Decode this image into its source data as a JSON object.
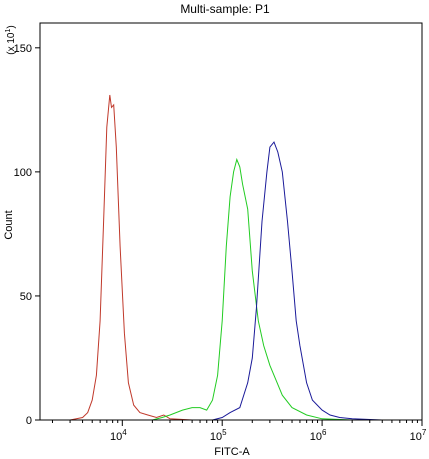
{
  "chart_data": {
    "type": "line",
    "title": "Multi-sample: P1",
    "xlabel": "FITC-A",
    "ylabel": "Count",
    "y_multiplier": "(x 10",
    "y_multiplier_exp": "1",
    "x_scale": "log",
    "xlim": [
      1500,
      10000000
    ],
    "ylim": [
      0,
      160
    ],
    "x_ticks": [
      {
        "value": 10000,
        "base": "10",
        "exp": "4"
      },
      {
        "value": 100000,
        "base": "10",
        "exp": "5"
      },
      {
        "value": 1000000,
        "base": "10",
        "exp": "6"
      },
      {
        "value": 10000000,
        "base": "10",
        "exp": "7"
      }
    ],
    "y_ticks": [
      {
        "value": 0,
        "label": "0"
      },
      {
        "value": 50,
        "label": "50"
      },
      {
        "value": 100,
        "label": "100"
      },
      {
        "value": 150,
        "label": "150"
      }
    ],
    "grid": false,
    "series": [
      {
        "color": "#c0392b",
        "points": [
          [
            1500,
            0
          ],
          [
            3000,
            0
          ],
          [
            4000,
            1
          ],
          [
            4500,
            3
          ],
          [
            5000,
            8
          ],
          [
            5500,
            18
          ],
          [
            6000,
            40
          ],
          [
            6500,
            80
          ],
          [
            7000,
            118
          ],
          [
            7500,
            131
          ],
          [
            7800,
            126
          ],
          [
            8200,
            127
          ],
          [
            8700,
            110
          ],
          [
            9500,
            70
          ],
          [
            10500,
            35
          ],
          [
            11500,
            15
          ],
          [
            13000,
            6
          ],
          [
            15000,
            3
          ],
          [
            18000,
            2
          ],
          [
            22000,
            1
          ],
          [
            26000,
            2
          ],
          [
            30000,
            0.5
          ],
          [
            50000,
            0
          ]
        ]
      },
      {
        "color": "#22cc22",
        "points": [
          [
            1500,
            0
          ],
          [
            20000,
            0
          ],
          [
            25000,
            1
          ],
          [
            30000,
            2
          ],
          [
            40000,
            4
          ],
          [
            50000,
            5
          ],
          [
            60000,
            5
          ],
          [
            70000,
            4
          ],
          [
            80000,
            8
          ],
          [
            90000,
            18
          ],
          [
            100000,
            40
          ],
          [
            110000,
            70
          ],
          [
            120000,
            90
          ],
          [
            130000,
            100
          ],
          [
            140000,
            105
          ],
          [
            150000,
            102
          ],
          [
            160000,
            95
          ],
          [
            180000,
            85
          ],
          [
            200000,
            60
          ],
          [
            230000,
            40
          ],
          [
            260000,
            30
          ],
          [
            300000,
            22
          ],
          [
            400000,
            10
          ],
          [
            500000,
            5
          ],
          [
            700000,
            2
          ],
          [
            1000000,
            0.5
          ],
          [
            2000000,
            0
          ]
        ]
      },
      {
        "color": "#1a1a99",
        "points": [
          [
            1500,
            0
          ],
          [
            80000,
            0
          ],
          [
            100000,
            1
          ],
          [
            120000,
            3
          ],
          [
            150000,
            5
          ],
          [
            180000,
            15
          ],
          [
            200000,
            25
          ],
          [
            220000,
            45
          ],
          [
            250000,
            80
          ],
          [
            280000,
            100
          ],
          [
            300000,
            110
          ],
          [
            330000,
            112
          ],
          [
            360000,
            108
          ],
          [
            400000,
            100
          ],
          [
            450000,
            80
          ],
          [
            500000,
            60
          ],
          [
            550000,
            40
          ],
          [
            600000,
            30
          ],
          [
            700000,
            15
          ],
          [
            800000,
            8
          ],
          [
            1000000,
            4
          ],
          [
            1200000,
            2
          ],
          [
            1500000,
            1
          ],
          [
            2000000,
            0.5
          ],
          [
            4000000,
            0
          ]
        ]
      }
    ]
  }
}
